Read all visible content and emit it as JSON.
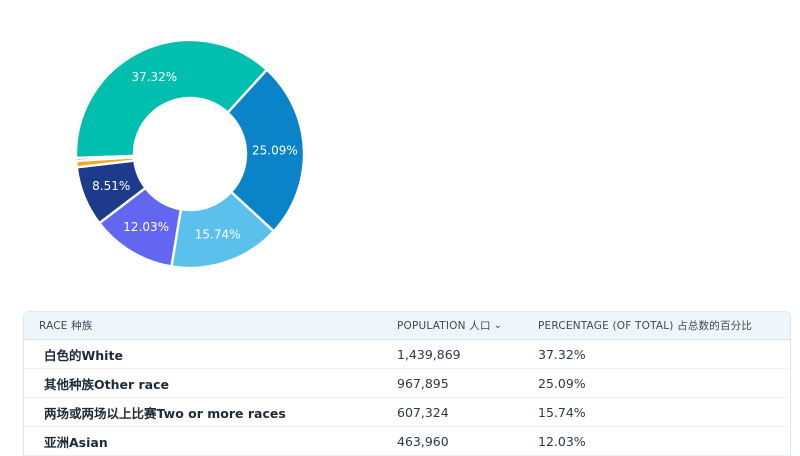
{
  "chart_data": {
    "type": "pie",
    "style": "donut",
    "slices": [
      {
        "label": "白色的White",
        "value": 37.32,
        "display": "37.32%",
        "color": "#00bfae"
      },
      {
        "label": "其他种族Other race",
        "value": 25.09,
        "display": "25.09%",
        "color": "#0a83c9"
      },
      {
        "label": "两场或两场以上比赛Two or more races",
        "value": 15.74,
        "display": "15.74%",
        "color": "#5bc0eb"
      },
      {
        "label": "亚洲Asian",
        "value": 12.03,
        "display": "12.03%",
        "color": "#6366f1"
      },
      {
        "label": "",
        "value": 8.51,
        "display": "8.51%",
        "color": "#1e3a8a"
      },
      {
        "label": "",
        "value": 0.9,
        "display": "",
        "color": "#f5a623"
      },
      {
        "label": "",
        "value": 0.4,
        "display": "",
        "color": "#ef4444"
      }
    ]
  },
  "table": {
    "headers": {
      "race": "RACE  种族",
      "population": "POPULATION  人口",
      "percentage": "PERCENTAGE (OF TOTAL)  占总数的百分比",
      "sort_icon": "chevron-down-icon"
    },
    "rows": [
      {
        "race": "白色的White",
        "population": "1,439,869",
        "percentage": "37.32%"
      },
      {
        "race": "其他种族Other race",
        "population": "967,895",
        "percentage": "25.09%"
      },
      {
        "race": "两场或两场以上比赛Two or more races",
        "population": "607,324",
        "percentage": "15.74%"
      },
      {
        "race": "亚洲Asian",
        "population": "463,960",
        "percentage": "12.03%"
      }
    ]
  }
}
